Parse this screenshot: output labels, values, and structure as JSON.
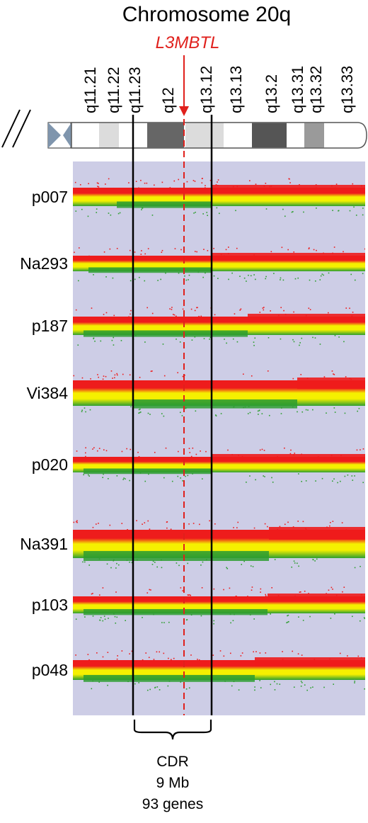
{
  "title": "Chromosome 20q",
  "gene": {
    "name": "L3MBTL",
    "color": "#e0201c"
  },
  "bands": [
    {
      "label": "q11.21",
      "stain": "#ffffff"
    },
    {
      "label": "q11.22",
      "stain": "#dcdcdc"
    },
    {
      "label": "q11.23",
      "stain": "#ffffff"
    },
    {
      "label": "q12",
      "stain": "#666666"
    },
    {
      "label": "q13.12",
      "stain": "#dcdcdc"
    },
    {
      "label": "q13.13",
      "stain": "#ffffff"
    },
    {
      "label": "q13.2",
      "stain": "#555555"
    },
    {
      "label": "q13.31",
      "stain": "#ffffff"
    },
    {
      "label": "q13.32",
      "stain": "#9a9a9a"
    },
    {
      "label": "q13.33",
      "stain": "#ffffff"
    }
  ],
  "samples": [
    "p007",
    "Na293",
    "p187",
    "Vi384",
    "p020",
    "Na391",
    "p103",
    "p048"
  ],
  "cdr": {
    "label": "CDR",
    "size": "9 Mb",
    "genes": "93 genes"
  },
  "colors": {
    "background": "#cdcde6",
    "gain": "#ee1c1c",
    "neutral": "#f5f000",
    "loss": "#2e9e30",
    "centromere": "#7f95ad",
    "boundary": "#000000"
  }
}
